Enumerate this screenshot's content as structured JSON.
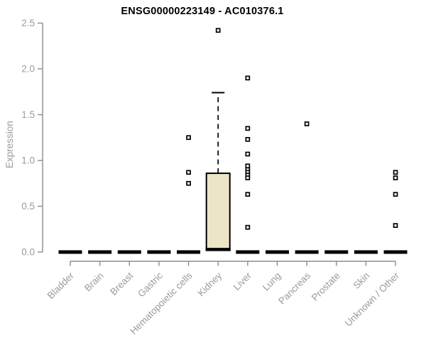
{
  "chart_data": {
    "type": "boxplot",
    "title": "ENSG00000223149 - AC010376.1",
    "ylabel": "Expression",
    "xlabel": "",
    "ylim": [
      0,
      2.5
    ],
    "yticks": [
      0.0,
      0.5,
      1.0,
      1.5,
      2.0,
      2.5
    ],
    "y_tick_labels": [
      "0.0",
      "0.5",
      "1.0",
      "1.5",
      "2.0",
      "2.5"
    ],
    "grid": "off",
    "legend": "none",
    "categories": [
      "Bladder",
      "Brain",
      "Breast",
      "Gastric",
      "Hematopoietic cells",
      "Kidney",
      "Liver",
      "Lung",
      "Pancreas",
      "Prostate",
      "Skin",
      "Unknown / Other"
    ],
    "boxes": [
      {
        "category": "Bladder",
        "q1": 0,
        "median": 0,
        "q3": 0,
        "whisker_low": 0,
        "whisker_high": 0,
        "outliers": []
      },
      {
        "category": "Brain",
        "q1": 0,
        "median": 0,
        "q3": 0,
        "whisker_low": 0,
        "whisker_high": 0,
        "outliers": []
      },
      {
        "category": "Breast",
        "q1": 0,
        "median": 0,
        "q3": 0,
        "whisker_low": 0,
        "whisker_high": 0,
        "outliers": []
      },
      {
        "category": "Gastric",
        "q1": 0,
        "median": 0,
        "q3": 0,
        "whisker_low": 0,
        "whisker_high": 0,
        "outliers": []
      },
      {
        "category": "Hematopoietic cells",
        "q1": 0,
        "median": 0,
        "q3": 0,
        "whisker_low": 0,
        "whisker_high": 0,
        "outliers": [
          1.25,
          0.87,
          0.75
        ]
      },
      {
        "category": "Kidney",
        "q1": 0.02,
        "median": 0.02,
        "q3": 0.86,
        "whisker_low": 0.02,
        "whisker_high": 1.74,
        "outliers": [
          2.42
        ]
      },
      {
        "category": "Liver",
        "q1": 0,
        "median": 0,
        "q3": 0,
        "whisker_low": 0,
        "whisker_high": 0,
        "outliers": [
          1.9,
          1.35,
          1.23,
          1.07,
          0.94,
          0.9,
          0.87,
          0.84,
          0.81,
          0.63,
          0.27
        ]
      },
      {
        "category": "Lung",
        "q1": 0,
        "median": 0,
        "q3": 0,
        "whisker_low": 0,
        "whisker_high": 0,
        "outliers": []
      },
      {
        "category": "Pancreas",
        "q1": 0,
        "median": 0,
        "q3": 0,
        "whisker_low": 0,
        "whisker_high": 0,
        "outliers": [
          1.4
        ]
      },
      {
        "category": "Prostate",
        "q1": 0,
        "median": 0,
        "q3": 0,
        "whisker_low": 0,
        "whisker_high": 0,
        "outliers": []
      },
      {
        "category": "Skin",
        "q1": 0,
        "median": 0,
        "q3": 0,
        "whisker_low": 0,
        "whisker_high": 0,
        "outliers": []
      },
      {
        "category": "Unknown / Other",
        "q1": 0,
        "median": 0,
        "q3": 0,
        "whisker_low": 0,
        "whisker_high": 0,
        "outliers": [
          0.87,
          0.81,
          0.63,
          0.29
        ]
      }
    ],
    "colors": {
      "background": "#ffffff",
      "box_fill": "#ece5c7",
      "box_border": "#000000",
      "median": "#000000",
      "whisker": "#000000",
      "outlier_stroke": "#000000",
      "outlier_fill": "#ffffff",
      "axis": "#8c8c8c",
      "tick_label": "#9b9b9b",
      "title": "#000000"
    }
  }
}
